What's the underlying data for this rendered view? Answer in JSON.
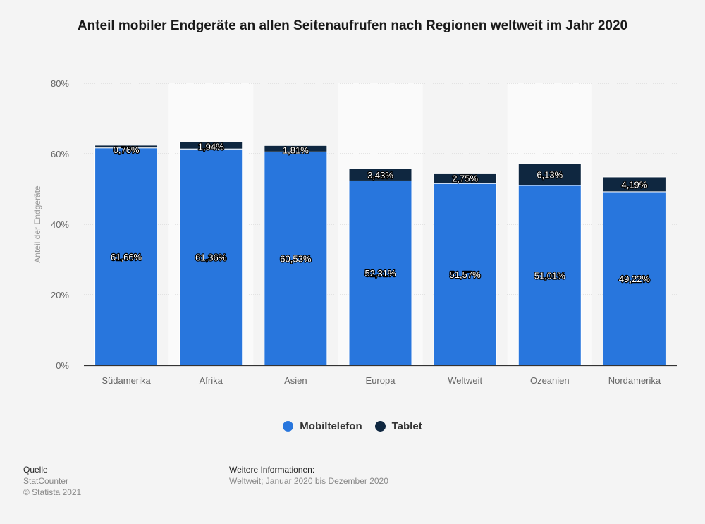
{
  "chart_data": {
    "type": "bar",
    "stacked": true,
    "title": "Anteil mobiler Endgeräte an allen Seitenaufrufen nach Regionen weltweit im Jahr 2020",
    "xlabel": "",
    "ylabel": "Anteil der Endgeräte",
    "ylim": [
      0,
      80
    ],
    "yticks": [
      0,
      20,
      40,
      60,
      80
    ],
    "ytick_labels": [
      "0%",
      "20%",
      "40%",
      "60%",
      "80%"
    ],
    "grid": true,
    "legend_position": "bottom-center",
    "categories": [
      "Südamerika",
      "Afrika",
      "Asien",
      "Europa",
      "Weltweit",
      "Ozeanien",
      "Nordamerika"
    ],
    "series": [
      {
        "name": "Mobiltelefon",
        "color": "#2876dd",
        "values": [
          61.66,
          61.36,
          60.53,
          52.31,
          51.57,
          51.01,
          49.22
        ],
        "labels": [
          "61,66%",
          "61,36%",
          "60,53%",
          "52,31%",
          "51,57%",
          "51,01%",
          "49,22%"
        ]
      },
      {
        "name": "Tablet",
        "color": "#0f2740",
        "values": [
          0.76,
          1.94,
          1.81,
          3.43,
          2.75,
          6.13,
          4.19
        ],
        "labels": [
          "0,76%",
          "1,94%",
          "1,81%",
          "3,43%",
          "2,75%",
          "6,13%",
          "4,19%"
        ]
      }
    ]
  },
  "legend": {
    "items": [
      {
        "label": "Mobiltelefon",
        "color": "#2876dd"
      },
      {
        "label": "Tablet",
        "color": "#0f2740"
      }
    ]
  },
  "footer": {
    "source_heading": "Quelle",
    "source_name": "StatCounter",
    "copyright": "© Statista 2021",
    "info_heading": "Weitere Informationen:",
    "info_text": "Weltweit; Januar 2020 bis Dezember 2020"
  }
}
